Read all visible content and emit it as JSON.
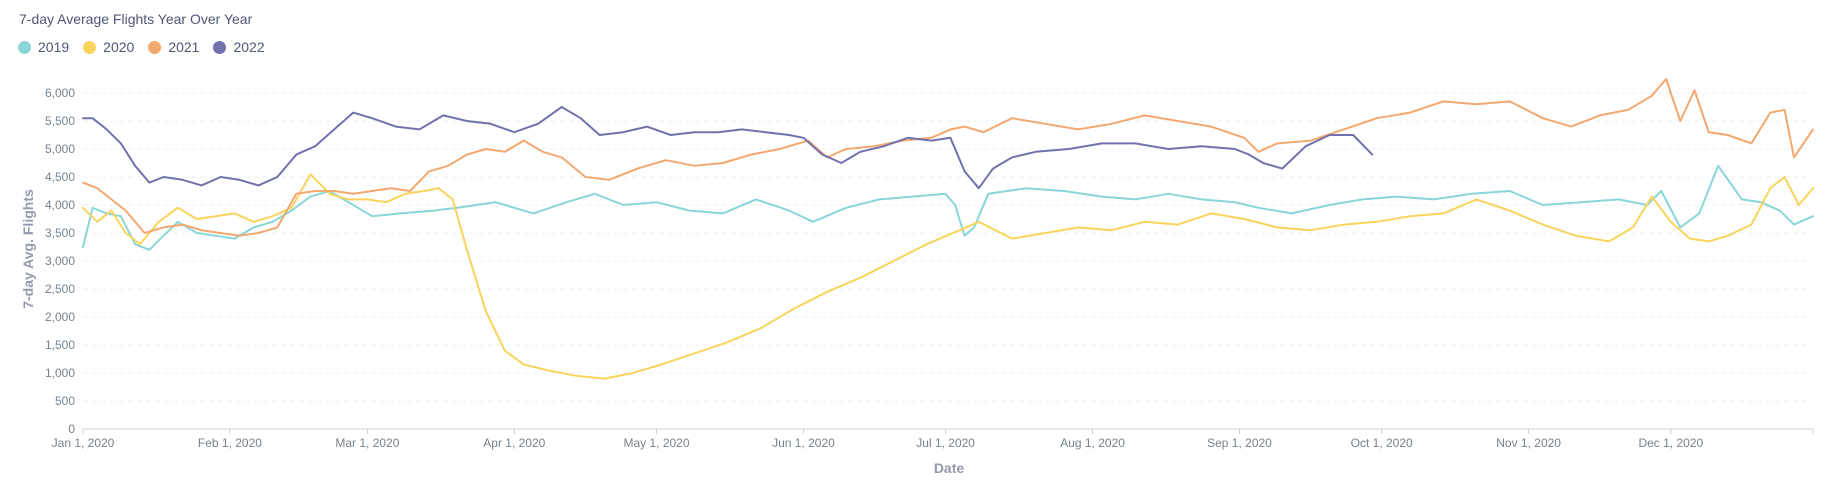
{
  "card": {
    "title": "7-day Average Flights Year Over Year"
  },
  "colors": {
    "2019": "#88d6d8",
    "2020": "#f9d45c",
    "2021": "#f2a86f",
    "2022": "#7172ad",
    "grid": "#eceff3",
    "axis": "#c9ced7"
  },
  "chart_data": {
    "type": "line",
    "title": "7-day Average Flights Year Over Year",
    "xlabel": "Date",
    "ylabel": "7-day Avg. Flights",
    "ylim": [
      0,
      6000
    ],
    "yticks": [
      0,
      500,
      1000,
      1500,
      2000,
      2500,
      3000,
      3500,
      4000,
      4500,
      5000,
      5500,
      6000
    ],
    "ytick_labels": [
      "0",
      "500",
      "1,000",
      "1,500",
      "2,000",
      "2,500",
      "3,000",
      "3,500",
      "4,000",
      "4,500",
      "5,000",
      "5,500",
      "6,000"
    ],
    "xlim": [
      "2020-01-01",
      "2020-12-31"
    ],
    "xticks": [
      "2020-01-01",
      "2020-02-01",
      "2020-03-01",
      "2020-04-01",
      "2020-05-01",
      "2020-06-01",
      "2020-07-01",
      "2020-08-01",
      "2020-09-01",
      "2020-10-01",
      "2020-11-01",
      "2020-12-01"
    ],
    "xtick_labels": [
      "Jan 1, 2020",
      "Feb 1, 2020",
      "Mar 1, 2020",
      "Apr 1, 2020",
      "May 1, 2020",
      "Jun 1, 2020",
      "Jul 1, 2020",
      "Aug 1, 2020",
      "Sep 1, 2020",
      "Oct 1, 2020",
      "Nov 1, 2020",
      "Dec 1, 2020"
    ],
    "grid": true,
    "legend": "top-left",
    "series": [
      {
        "name": "2019",
        "color": "#88d6d8",
        "x": [
          "2020-01-01",
          "2020-01-03",
          "2020-01-06",
          "2020-01-09",
          "2020-01-12",
          "2020-01-15",
          "2020-01-18",
          "2020-01-21",
          "2020-01-25",
          "2020-01-29",
          "2020-02-02",
          "2020-02-06",
          "2020-02-10",
          "2020-02-14",
          "2020-02-18",
          "2020-02-22",
          "2020-02-26",
          "2020-03-02",
          "2020-03-08",
          "2020-03-15",
          "2020-03-20",
          "2020-03-28",
          "2020-04-05",
          "2020-04-12",
          "2020-04-18",
          "2020-04-24",
          "2020-05-01",
          "2020-05-08",
          "2020-05-15",
          "2020-05-22",
          "2020-05-29",
          "2020-06-03",
          "2020-06-10",
          "2020-06-17",
          "2020-06-24",
          "2020-07-01",
          "2020-07-03",
          "2020-07-05",
          "2020-07-07",
          "2020-07-10",
          "2020-07-18",
          "2020-07-26",
          "2020-08-03",
          "2020-08-10",
          "2020-08-17",
          "2020-08-24",
          "2020-08-31",
          "2020-09-05",
          "2020-09-12",
          "2020-09-20",
          "2020-09-27",
          "2020-10-04",
          "2020-10-12",
          "2020-10-20",
          "2020-10-28",
          "2020-11-04",
          "2020-11-12",
          "2020-11-20",
          "2020-11-26",
          "2020-11-29",
          "2020-12-03",
          "2020-12-07",
          "2020-12-11",
          "2020-12-16",
          "2020-12-20",
          "2020-12-24",
          "2020-12-27",
          "2020-12-31"
        ],
        "values": [
          3250,
          3950,
          3850,
          3800,
          3300,
          3200,
          3450,
          3700,
          3500,
          3450,
          3400,
          3600,
          3700,
          3900,
          4150,
          4250,
          4050,
          3800,
          3850,
          3900,
          3950,
          4050,
          3850,
          4050,
          4200,
          4000,
          4050,
          3900,
          3850,
          4100,
          3900,
          3700,
          3950,
          4100,
          4150,
          4200,
          4000,
          3450,
          3600,
          4200,
          4300,
          4250,
          4150,
          4100,
          4200,
          4100,
          4050,
          3950,
          3850,
          4000,
          4100,
          4150,
          4100,
          4200,
          4250,
          4000,
          4050,
          4100,
          4000,
          4250,
          3600,
          3850,
          4700,
          4100,
          4050,
          3900,
          3650,
          3800
        ]
      },
      {
        "name": "2020",
        "color": "#f9d45c",
        "x": [
          "2020-01-01",
          "2020-01-04",
          "2020-01-07",
          "2020-01-10",
          "2020-01-13",
          "2020-01-17",
          "2020-01-21",
          "2020-01-25",
          "2020-01-29",
          "2020-02-02",
          "2020-02-06",
          "2020-02-10",
          "2020-02-14",
          "2020-02-18",
          "2020-02-22",
          "2020-02-26",
          "2020-03-01",
          "2020-03-05",
          "2020-03-09",
          "2020-03-13",
          "2020-03-16",
          "2020-03-19",
          "2020-03-22",
          "2020-03-26",
          "2020-03-30",
          "2020-04-03",
          "2020-04-08",
          "2020-04-14",
          "2020-04-20",
          "2020-04-26",
          "2020-05-02",
          "2020-05-09",
          "2020-05-16",
          "2020-05-23",
          "2020-05-30",
          "2020-06-06",
          "2020-06-13",
          "2020-06-20",
          "2020-06-27",
          "2020-07-04",
          "2020-07-08",
          "2020-07-15",
          "2020-07-22",
          "2020-07-29",
          "2020-08-05",
          "2020-08-12",
          "2020-08-19",
          "2020-08-26",
          "2020-09-02",
          "2020-09-09",
          "2020-09-16",
          "2020-09-23",
          "2020-09-30",
          "2020-10-07",
          "2020-10-14",
          "2020-10-21",
          "2020-10-28",
          "2020-11-04",
          "2020-11-11",
          "2020-11-18",
          "2020-11-23",
          "2020-11-27",
          "2020-12-01",
          "2020-12-05",
          "2020-12-09",
          "2020-12-13",
          "2020-12-18",
          "2020-12-22",
          "2020-12-25",
          "2020-12-28",
          "2020-12-31"
        ],
        "values": [
          3950,
          3700,
          3900,
          3500,
          3300,
          3700,
          3950,
          3750,
          3800,
          3850,
          3700,
          3800,
          3950,
          4550,
          4200,
          4100,
          4100,
          4050,
          4200,
          4250,
          4300,
          4100,
          3200,
          2100,
          1400,
          1150,
          1050,
          950,
          900,
          1000,
          1150,
          1350,
          1550,
          1800,
          2150,
          2450,
          2700,
          3000,
          3300,
          3550,
          3700,
          3400,
          3500,
          3600,
          3550,
          3700,
          3650,
          3850,
          3750,
          3600,
          3550,
          3650,
          3700,
          3800,
          3850,
          4100,
          3900,
          3650,
          3450,
          3350,
          3600,
          4150,
          3700,
          3400,
          3350,
          3450,
          3650,
          4300,
          4500,
          4000,
          4300
        ]
      },
      {
        "name": "2021",
        "color": "#f2a86f",
        "x": [
          "2020-01-01",
          "2020-01-04",
          "2020-01-07",
          "2020-01-10",
          "2020-01-14",
          "2020-01-18",
          "2020-01-22",
          "2020-01-26",
          "2020-01-30",
          "2020-02-03",
          "2020-02-07",
          "2020-02-11",
          "2020-02-15",
          "2020-02-19",
          "2020-02-23",
          "2020-02-27",
          "2020-03-02",
          "2020-03-06",
          "2020-03-10",
          "2020-03-14",
          "2020-03-18",
          "2020-03-22",
          "2020-03-26",
          "2020-03-30",
          "2020-04-03",
          "2020-04-07",
          "2020-04-11",
          "2020-04-16",
          "2020-04-21",
          "2020-04-27",
          "2020-05-03",
          "2020-05-09",
          "2020-05-15",
          "2020-05-21",
          "2020-05-27",
          "2020-06-02",
          "2020-06-06",
          "2020-06-10",
          "2020-06-16",
          "2020-06-22",
          "2020-06-28",
          "2020-07-02",
          "2020-07-05",
          "2020-07-09",
          "2020-07-15",
          "2020-07-22",
          "2020-07-29",
          "2020-08-05",
          "2020-08-12",
          "2020-08-19",
          "2020-08-26",
          "2020-09-02",
          "2020-09-05",
          "2020-09-09",
          "2020-09-16",
          "2020-09-23",
          "2020-09-30",
          "2020-10-07",
          "2020-10-14",
          "2020-10-21",
          "2020-10-28",
          "2020-11-04",
          "2020-11-10",
          "2020-11-16",
          "2020-11-22",
          "2020-11-27",
          "2020-11-30",
          "2020-12-03",
          "2020-12-06",
          "2020-12-09",
          "2020-12-13",
          "2020-12-18",
          "2020-12-22",
          "2020-12-25",
          "2020-12-27",
          "2020-12-31"
        ],
        "values": [
          4400,
          4300,
          4100,
          3900,
          3500,
          3600,
          3650,
          3550,
          3500,
          3450,
          3500,
          3600,
          4200,
          4250,
          4250,
          4200,
          4250,
          4300,
          4250,
          4600,
          4700,
          4900,
          5000,
          4950,
          5150,
          4950,
          4850,
          4500,
          4450,
          4650,
          4800,
          4700,
          4750,
          4900,
          5000,
          5150,
          4850,
          5000,
          5050,
          5150,
          5200,
          5350,
          5400,
          5300,
          5550,
          5450,
          5350,
          5450,
          5600,
          5500,
          5400,
          5200,
          4950,
          5100,
          5150,
          5350,
          5550,
          5650,
          5850,
          5800,
          5850,
          5550,
          5400,
          5600,
          5700,
          5950,
          6250,
          5500,
          6050,
          5300,
          5250,
          5100,
          5650,
          5700,
          4850,
          5350
        ]
      },
      {
        "name": "2022",
        "color": "#7172ad",
        "x": [
          "2020-01-01",
          "2020-01-03",
          "2020-01-06",
          "2020-01-09",
          "2020-01-12",
          "2020-01-15",
          "2020-01-18",
          "2020-01-22",
          "2020-01-26",
          "2020-01-30",
          "2020-02-03",
          "2020-02-07",
          "2020-02-11",
          "2020-02-15",
          "2020-02-19",
          "2020-02-23",
          "2020-02-27",
          "2020-03-02",
          "2020-03-07",
          "2020-03-12",
          "2020-03-17",
          "2020-03-22",
          "2020-03-27",
          "2020-04-01",
          "2020-04-06",
          "2020-04-11",
          "2020-04-15",
          "2020-04-19",
          "2020-04-24",
          "2020-04-29",
          "2020-05-04",
          "2020-05-09",
          "2020-05-14",
          "2020-05-19",
          "2020-05-24",
          "2020-05-29",
          "2020-06-01",
          "2020-06-05",
          "2020-06-09",
          "2020-06-13",
          "2020-06-18",
          "2020-06-23",
          "2020-06-28",
          "2020-07-02",
          "2020-07-05",
          "2020-07-08",
          "2020-07-11",
          "2020-07-15",
          "2020-07-20",
          "2020-07-27",
          "2020-08-03",
          "2020-08-10",
          "2020-08-17",
          "2020-08-24",
          "2020-08-31",
          "2020-09-03",
          "2020-09-06",
          "2020-09-10",
          "2020-09-15",
          "2020-09-20",
          "2020-09-25",
          "2020-09-29"
        ],
        "values": [
          5550,
          5550,
          5350,
          5100,
          4700,
          4400,
          4500,
          4450,
          4350,
          4500,
          4450,
          4350,
          4500,
          4900,
          5050,
          5350,
          5650,
          5550,
          5400,
          5350,
          5600,
          5500,
          5450,
          5300,
          5450,
          5750,
          5550,
          5250,
          5300,
          5400,
          5250,
          5300,
          5300,
          5350,
          5300,
          5250,
          5200,
          4900,
          4750,
          4950,
          5050,
          5200,
          5150,
          5200,
          4600,
          4300,
          4650,
          4850,
          4950,
          5000,
          5100,
          5100,
          5000,
          5050,
          5000,
          4900,
          4750,
          4650,
          5050,
          5250,
          5250,
          4900
        ]
      }
    ]
  }
}
